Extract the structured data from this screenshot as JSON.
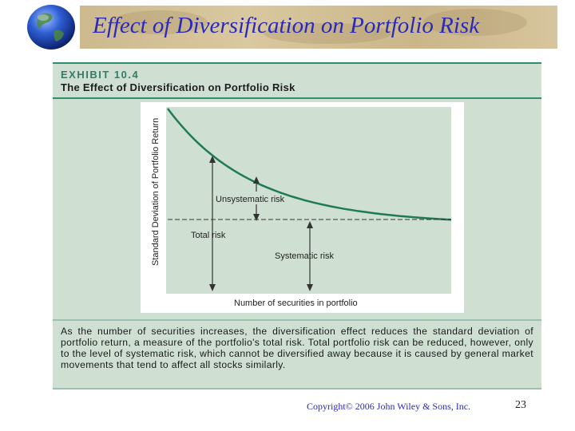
{
  "slide": {
    "title": "Effect of Diversification on Portfolio Risk",
    "copyright": "Copyright© 2006 John Wiley & Sons, Inc.",
    "page_number": "23"
  },
  "exhibit": {
    "label": "EXHIBIT 10.4",
    "title": "The Effect of Diversification on Portfolio Risk",
    "caption": "As the number of securities increases, the diversification effect reduces the standard deviation of portfolio return, a measure of the portfolio's total risk. Total portfolio risk can be reduced, however, only to the level of systematic risk, which cannot be diversified away because it is caused by general market movements that tend to affect all stocks similarly."
  },
  "diagram": {
    "y_axis_label": "Standard Deviation of Portfolio Return",
    "x_axis_label": "Number of securities in portfolio",
    "labels": {
      "unsystematic": "Unsystematic risk",
      "total": "Total risk",
      "systematic": "Systematic risk"
    },
    "colors": {
      "plot_bg": "#cfe0d3",
      "curve": "#1f7a56",
      "axis": "#333333",
      "text": "#222222"
    }
  }
}
